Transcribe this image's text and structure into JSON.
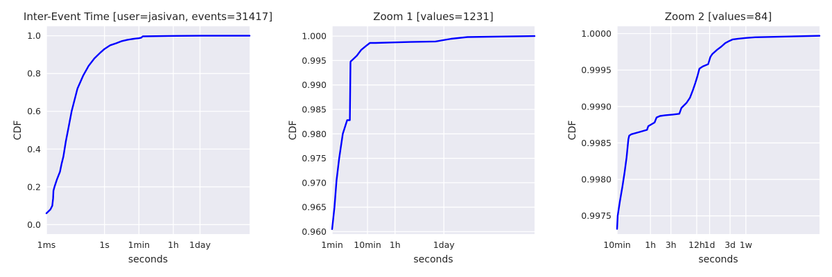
{
  "chart_data": [
    {
      "type": "line",
      "title": "Inter-Event Time [user=jasivan, events=31417]",
      "xlabel": "seconds",
      "ylabel": "CDF",
      "x_scale": "log",
      "xlim_seconds": [
        0.001,
        31536000
      ],
      "ylim": [
        -0.05,
        1.05
      ],
      "grid": true,
      "x_ticks": [
        {
          "label": "1ms",
          "value": 0.001
        },
        {
          "label": "1s",
          "value": 1
        },
        {
          "label": "1min",
          "value": 60
        },
        {
          "label": "1h",
          "value": 3600
        },
        {
          "label": "1day",
          "value": 86400
        }
      ],
      "y_ticks": [
        {
          "label": "0.0",
          "value": 0.0
        },
        {
          "label": "0.2",
          "value": 0.2
        },
        {
          "label": "0.4",
          "value": 0.4
        },
        {
          "label": "0.6",
          "value": 0.6
        },
        {
          "label": "0.8",
          "value": 0.8
        },
        {
          "label": "1.0",
          "value": 1.0
        }
      ],
      "series": [
        {
          "color": "#0000ff",
          "x": [
            0.001,
            0.0016,
            0.002,
            0.0022,
            0.0023,
            0.0026,
            0.0035,
            0.005,
            0.006,
            0.0075,
            0.01,
            0.013,
            0.02,
            0.04,
            0.08,
            0.15,
            0.3,
            0.6,
            1.0,
            2.0,
            4.0,
            8.0,
            15,
            25,
            40,
            60,
            80,
            90,
            95,
            2000,
            100000,
            31536000
          ],
          "y": [
            0.06,
            0.08,
            0.1,
            0.14,
            0.18,
            0.2,
            0.24,
            0.28,
            0.32,
            0.36,
            0.44,
            0.5,
            0.6,
            0.72,
            0.79,
            0.84,
            0.88,
            0.91,
            0.93,
            0.95,
            0.96,
            0.972,
            0.978,
            0.982,
            0.985,
            0.987,
            0.99,
            0.995,
            0.997,
            0.999,
            1.0,
            1.0
          ]
        }
      ]
    },
    {
      "type": "line",
      "title": "Zoom 1 [values=1231]",
      "xlabel": "seconds",
      "ylabel": "CDF",
      "x_scale": "log",
      "xlim_seconds": [
        60,
        31536000
      ],
      "ylim": [
        0.9595,
        1.002
      ],
      "grid": true,
      "x_ticks": [
        {
          "label": "1min",
          "value": 60
        },
        {
          "label": "10min",
          "value": 600
        },
        {
          "label": "1h",
          "value": 3600
        },
        {
          "label": "1day",
          "value": 86400
        }
      ],
      "y_ticks": [
        {
          "label": "0.960",
          "value": 0.96
        },
        {
          "label": "0.965",
          "value": 0.965
        },
        {
          "label": "0.970",
          "value": 0.97
        },
        {
          "label": "0.975",
          "value": 0.975
        },
        {
          "label": "0.980",
          "value": 0.98
        },
        {
          "label": "0.985",
          "value": 0.985
        },
        {
          "label": "0.990",
          "value": 0.99
        },
        {
          "label": "0.995",
          "value": 0.995
        },
        {
          "label": "1.000",
          "value": 1.0
        }
      ],
      "series": [
        {
          "color": "#0000ff",
          "x": [
            60,
            70,
            80,
            95,
            120,
            160,
            190,
            198,
            200,
            230,
            300,
            400,
            550,
            700,
            1000,
            3000,
            10000,
            50000,
            140000,
            400000,
            31536000
          ],
          "y": [
            0.9605,
            0.965,
            0.9705,
            0.975,
            0.98,
            0.9828,
            0.9828,
            0.9945,
            0.9948,
            0.9952,
            0.996,
            0.9972,
            0.998,
            0.9986,
            0.9986,
            0.9987,
            0.9988,
            0.9989,
            0.99945,
            0.9998,
            1.0
          ]
        }
      ]
    },
    {
      "type": "line",
      "title": "Zoom 2 [values=84]",
      "xlabel": "seconds",
      "ylabel": "CDF",
      "x_scale": "log",
      "xlim_seconds": [
        600,
        31536000
      ],
      "ylim": [
        0.99725,
        1.0001
      ],
      "grid": true,
      "x_ticks": [
        {
          "label": "10min",
          "value": 600
        },
        {
          "label": "1h",
          "value": 3600
        },
        {
          "label": "3h",
          "value": 10800
        },
        {
          "label": "12h",
          "value": 43200
        },
        {
          "label": "1d",
          "value": 86400
        },
        {
          "label": "3d",
          "value": 259200
        },
        {
          "label": "1w",
          "value": 604800
        }
      ],
      "y_ticks": [
        {
          "label": "0.9975",
          "value": 0.9975
        },
        {
          "label": "0.9980",
          "value": 0.998
        },
        {
          "label": "0.9985",
          "value": 0.9985
        },
        {
          "label": "0.9990",
          "value": 0.999
        },
        {
          "label": "0.9995",
          "value": 0.9995
        },
        {
          "label": "1.0000",
          "value": 1.0
        }
      ],
      "series": [
        {
          "color": "#0000ff",
          "x": [
            600,
            620,
            700,
            800,
            900,
            1000,
            1100,
            1150,
            1300,
            2000,
            3000,
            3200,
            4500,
            5000,
            6000,
            8000,
            12000,
            17000,
            19000,
            25000,
            30000,
            35000,
            40000,
            45000,
            50000,
            60000,
            80000,
            90000,
            100000,
            130000,
            160000,
            200000,
            250000,
            300000,
            400000,
            600000,
            1000000,
            31536000
          ],
          "y": [
            0.99732,
            0.9975,
            0.9977,
            0.9979,
            0.9981,
            0.9983,
            0.99855,
            0.9986,
            0.99862,
            0.99865,
            0.99868,
            0.99873,
            0.99878,
            0.99885,
            0.99887,
            0.99888,
            0.99889,
            0.9989,
            0.99898,
            0.99905,
            0.99912,
            0.99922,
            0.99932,
            0.99942,
            0.99952,
            0.99955,
            0.99958,
            0.99968,
            0.99972,
            0.99978,
            0.99982,
            0.99987,
            0.9999,
            0.99992,
            0.99993,
            0.99994,
            0.99995,
            0.99997
          ]
        }
      ]
    }
  ]
}
